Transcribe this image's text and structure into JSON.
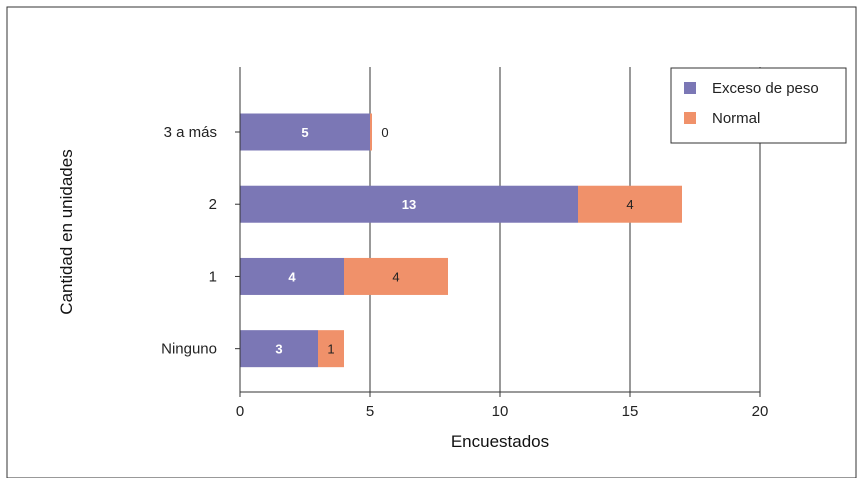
{
  "chart_data": {
    "type": "bar",
    "orientation": "horizontal",
    "stacked": true,
    "categories": [
      "3 a más",
      "2",
      "1",
      "Ninguno"
    ],
    "series": [
      {
        "name": "Exceso de peso",
        "values": [
          5,
          13,
          4,
          3
        ],
        "color": "#7b77b5"
      },
      {
        "name": "Normal",
        "values": [
          0,
          4,
          4,
          1
        ],
        "color": "#f0916a"
      }
    ],
    "xlabel": "Encuestados",
    "ylabel": "Cantidad en unidades",
    "xlim": [
      0,
      20
    ],
    "xticks": [
      0,
      5,
      10,
      15,
      20
    ],
    "grid": "vertical",
    "legend_position": "top-right"
  }
}
